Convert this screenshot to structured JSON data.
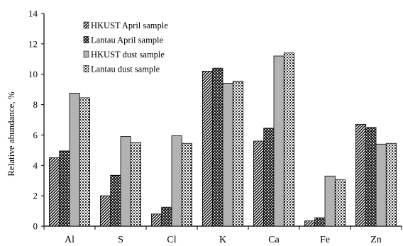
{
  "chart_data": {
    "type": "bar",
    "title": "",
    "xlabel": "",
    "ylabel": "Relative abundance, %",
    "ylim": [
      0,
      14
    ],
    "yticks": [
      0,
      2,
      4,
      6,
      8,
      10,
      12,
      14
    ],
    "grid": false,
    "legend_position": "top-left",
    "categories": [
      "Al",
      "S",
      "Cl",
      "K",
      "Ca",
      "Fe",
      "Zn"
    ],
    "series": [
      {
        "name": "HKUST April sample",
        "pattern": "diagonal-hatch",
        "color": "#000000",
        "values": [
          4.5,
          2.0,
          0.8,
          10.2,
          5.6,
          0.35,
          6.7
        ]
      },
      {
        "name": "Lantau April sample",
        "pattern": "dark-checker",
        "color": "#1a1a1a",
        "values": [
          4.95,
          3.35,
          1.25,
          10.4,
          6.45,
          0.55,
          6.5
        ]
      },
      {
        "name": "HKUST dust sample",
        "pattern": "solid-gray",
        "color": "#b3b3b3",
        "values": [
          8.75,
          5.9,
          5.95,
          9.4,
          11.2,
          3.3,
          5.4
        ]
      },
      {
        "name": "Lantau dust sample",
        "pattern": "grid-check",
        "color": "#555555",
        "values": [
          8.45,
          5.5,
          5.45,
          9.55,
          11.4,
          3.05,
          5.45
        ]
      }
    ]
  }
}
